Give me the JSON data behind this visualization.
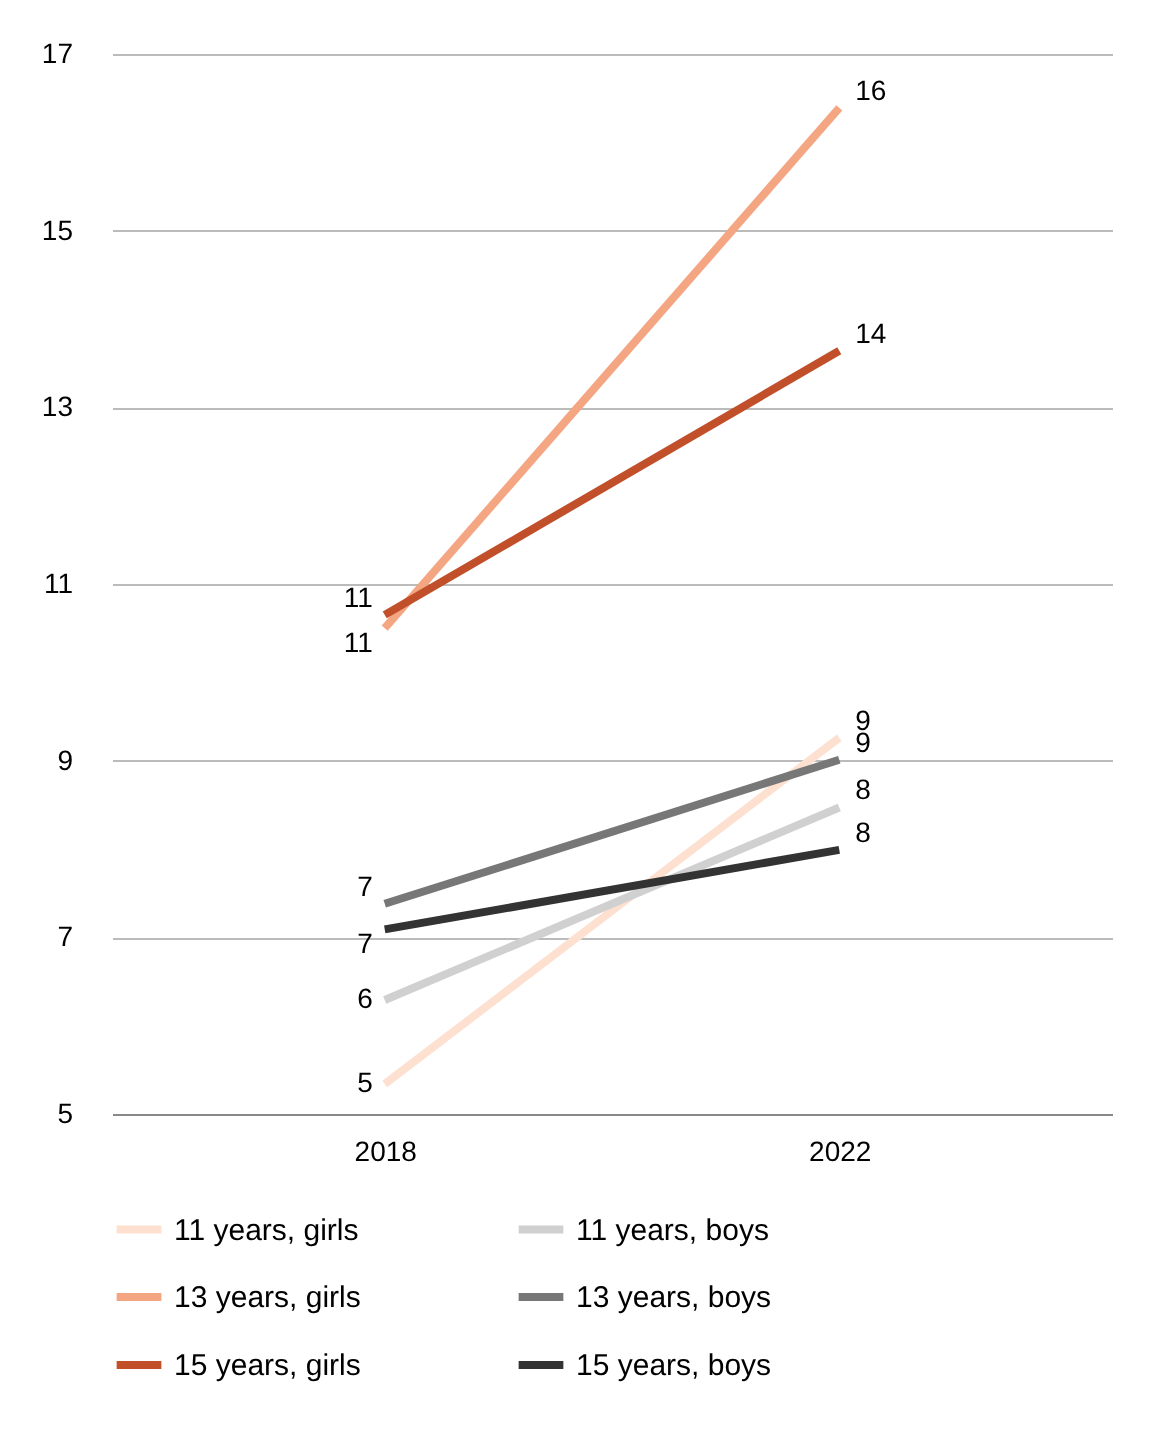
{
  "chart_data": {
    "type": "line",
    "categories": [
      "2018",
      "2022"
    ],
    "series": [
      {
        "name": "11 years, girls",
        "color": "#fde0d0",
        "values": [
          5.34,
          9.26
        ],
        "value_labels": [
          "5",
          "9"
        ]
      },
      {
        "name": "13 years, girls",
        "color": "#f4a582",
        "values": [
          10.5,
          16.39
        ],
        "value_labels": [
          "11",
          "16"
        ]
      },
      {
        "name": "15 years, girls",
        "color": "#c1502a",
        "values": [
          10.65,
          13.64
        ],
        "value_labels": [
          "11",
          "14"
        ]
      },
      {
        "name": "11 years, boys",
        "color": "#d0d0d0",
        "values": [
          6.29,
          8.47
        ],
        "value_labels": [
          "6",
          "8"
        ]
      },
      {
        "name": "13 years, boys",
        "color": "#777777",
        "values": [
          7.38,
          9.01
        ],
        "value_labels": [
          "7",
          "9"
        ]
      },
      {
        "name": "15 years, boys",
        "color": "#333333",
        "values": [
          7.09,
          7.99
        ],
        "value_labels": [
          "7",
          "8"
        ]
      }
    ],
    "ylim": [
      5,
      17
    ],
    "yticks": [
      5,
      7,
      9,
      11,
      13,
      15,
      17
    ],
    "grid": "y",
    "legend": "bottom"
  }
}
